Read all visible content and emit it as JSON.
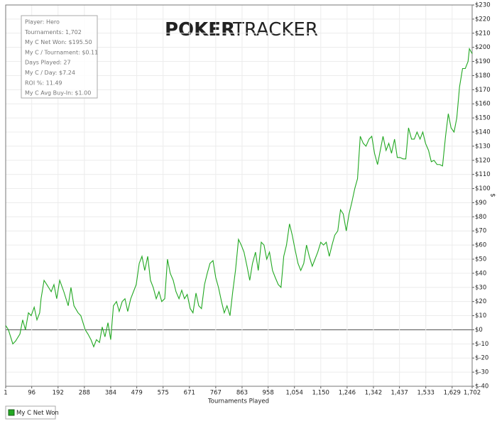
{
  "chart_data": {
    "type": "line",
    "watermark": [
      "POKER",
      "TRACKER"
    ],
    "annotations": [
      "Player: Hero",
      "Tournaments: 1,702",
      "My C Net Won: $195.50",
      "My C / Tournament: $0.11",
      "Days Played: 27",
      "My C / Day: $7.24",
      "ROI %: 11.49",
      "My C Avg Buy-In: $1.00"
    ],
    "x_label": "Tournaments Played",
    "y_label": "$",
    "legend": "bottom-left",
    "grid": true,
    "xlim": [
      1,
      1702
    ],
    "ylim": [
      -40,
      230
    ],
    "xticks": [
      1,
      96,
      192,
      288,
      384,
      479,
      575,
      671,
      767,
      863,
      958,
      {
        "value": 1054,
        "label": "1,054"
      },
      {
        "value": 1150,
        "label": "1,150"
      },
      {
        "value": 1246,
        "label": "1,246"
      },
      {
        "value": 1342,
        "label": "1,342"
      },
      {
        "value": 1437,
        "label": "1,437"
      },
      {
        "value": 1533,
        "label": "1,533"
      },
      {
        "value": 1629,
        "label": "1,629"
      },
      {
        "value": 1702,
        "label": "1,702"
      }
    ],
    "yticks": [
      {
        "value": -40,
        "label": "$-40"
      },
      {
        "value": -30,
        "label": "$-30"
      },
      {
        "value": -20,
        "label": "$-20"
      },
      {
        "value": -10,
        "label": "$-10"
      },
      {
        "value": 0,
        "label": "$0"
      },
      {
        "value": 10,
        "label": "$10"
      },
      {
        "value": 20,
        "label": "$20"
      },
      {
        "value": 30,
        "label": "$30"
      },
      {
        "value": 40,
        "label": "$40"
      },
      {
        "value": 50,
        "label": "$50"
      },
      {
        "value": 60,
        "label": "$60"
      },
      {
        "value": 70,
        "label": "$70"
      },
      {
        "value": 80,
        "label": "$80"
      },
      {
        "value": 90,
        "label": "$90"
      },
      {
        "value": 100,
        "label": "$100"
      },
      {
        "value": 110,
        "label": "$110"
      },
      {
        "value": 120,
        "label": "$120"
      },
      {
        "value": 130,
        "label": "$130"
      },
      {
        "value": 140,
        "label": "$140"
      },
      {
        "value": 150,
        "label": "$150"
      },
      {
        "value": 160,
        "label": "$160"
      },
      {
        "value": 170,
        "label": "$170"
      },
      {
        "value": 180,
        "label": "$180"
      },
      {
        "value": 190,
        "label": "$190"
      },
      {
        "value": 200,
        "label": "$200"
      },
      {
        "value": 210,
        "label": "$210"
      },
      {
        "value": 220,
        "label": "$220"
      },
      {
        "value": 230,
        "label": "$230"
      }
    ],
    "x": [
      1,
      11,
      27,
      37,
      53,
      63,
      73,
      84,
      94,
      105,
      115,
      125,
      130,
      141,
      151,
      167,
      177,
      187,
      198,
      213,
      229,
      239,
      250,
      265,
      275,
      291,
      301,
      312,
      322,
      332,
      343,
      353,
      363,
      374,
      384,
      394,
      405,
      415,
      426,
      436,
      446,
      457,
      467,
      477,
      488,
      498,
      508,
      519,
      529,
      539,
      550,
      560,
      570,
      581,
      591,
      601,
      612,
      622,
      633,
      643,
      653,
      663,
      674,
      684,
      695,
      705,
      715,
      726,
      736,
      746,
      757,
      767,
      777,
      788,
      798,
      808,
      819,
      829,
      839,
      850,
      860,
      870,
      881,
      891,
      901,
      912,
      922,
      933,
      943,
      953,
      963,
      974,
      984,
      995,
      1005,
      1015,
      1025,
      1036,
      1046,
      1056,
      1067,
      1077,
      1088,
      1098,
      1108,
      1119,
      1129,
      1139,
      1150,
      1160,
      1170,
      1181,
      1191,
      1201,
      1212,
      1222,
      1232,
      1243,
      1253,
      1263,
      1274,
      1284,
      1294,
      1305,
      1315,
      1326,
      1336,
      1346,
      1357,
      1367,
      1377,
      1388,
      1398,
      1408,
      1419,
      1429,
      1439,
      1450,
      1460,
      1470,
      1481,
      1491,
      1501,
      1512,
      1522,
      1532,
      1543,
      1553,
      1563,
      1574,
      1584,
      1594,
      1605,
      1615,
      1625,
      1636,
      1646,
      1656,
      1667,
      1677,
      1687,
      1692,
      1702
    ],
    "series": [
      {
        "name": "My C Net Won",
        "color": "#22a822",
        "values": [
          3,
          0,
          -10,
          -8,
          -3,
          7,
          0,
          12,
          10,
          16,
          7,
          12,
          22,
          35,
          32,
          27,
          32,
          22,
          35,
          27,
          17,
          30,
          17,
          12,
          10,
          0,
          -3,
          -7,
          -12,
          -7,
          -9,
          2,
          -5,
          5,
          -7,
          17,
          20,
          13,
          20,
          22,
          13,
          22,
          27,
          32,
          47,
          52,
          42,
          52,
          35,
          30,
          22,
          27,
          20,
          22,
          50,
          40,
          35,
          27,
          22,
          28,
          22,
          25,
          15,
          12,
          26,
          17,
          15,
          32,
          40,
          47,
          49,
          37,
          30,
          20,
          12,
          17,
          10,
          27,
          42,
          64,
          60,
          55,
          45,
          35,
          47,
          55,
          42,
          62,
          60,
          50,
          55,
          42,
          37,
          32,
          30,
          52,
          60,
          75,
          67,
          57,
          47,
          42,
          47,
          60,
          52,
          45,
          50,
          55,
          62,
          60,
          62,
          52,
          60,
          67,
          70,
          85,
          82,
          70,
          82,
          90,
          100,
          107,
          137,
          132,
          130,
          135,
          137,
          125,
          117,
          127,
          137,
          127,
          132,
          125,
          135,
          122,
          122,
          121,
          121,
          143,
          135,
          135,
          140,
          135,
          140,
          132,
          127,
          119,
          120,
          117,
          117,
          116,
          137,
          153,
          143,
          140,
          150,
          172,
          185,
          185,
          190,
          199,
          195.5
        ]
      }
    ]
  }
}
